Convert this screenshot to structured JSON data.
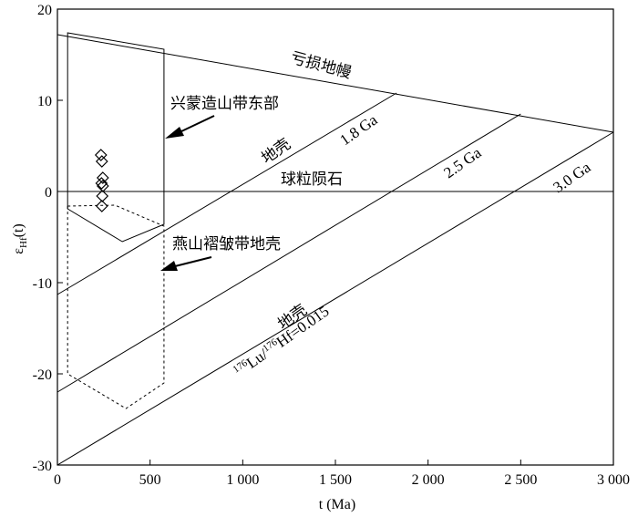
{
  "chart_data": {
    "type": "line",
    "xlabel": "t (Ma)",
    "ylabel_main": "ε",
    "ylabel_sub": "Hf",
    "ylabel_suffix": "(t)",
    "xlim": [
      0,
      3000
    ],
    "ylim": [
      -30,
      20
    ],
    "x_ticks": [
      0,
      500,
      1000,
      1500,
      2000,
      2500,
      3000
    ],
    "x_tick_labels": [
      "0",
      "500",
      "1 000",
      "1 500",
      "2 000",
      "2 500",
      "3 000"
    ],
    "y_ticks": [
      -30,
      -20,
      -10,
      0,
      10,
      20
    ],
    "y_tick_labels": [
      "-30",
      "-20",
      "-10",
      "0",
      "10",
      "20"
    ],
    "lines": [
      {
        "id": "depleted-mantle",
        "label": "亏损地幔",
        "points": [
          [
            0,
            17.2
          ],
          [
            3000,
            6.5
          ]
        ],
        "style": "solid"
      },
      {
        "id": "chur",
        "label": "球粒陨石",
        "points": [
          [
            0,
            0
          ],
          [
            3000,
            0
          ]
        ],
        "style": "solid"
      },
      {
        "id": "crust-1-8",
        "label": "1.8 Ga",
        "points": [
          [
            0,
            -11.3
          ],
          [
            1830,
            10.8
          ]
        ],
        "style": "solid"
      },
      {
        "id": "crust-2-5",
        "label": "2.5 Ga",
        "points": [
          [
            0,
            -22
          ],
          [
            2500,
            8.5
          ]
        ],
        "style": "solid"
      },
      {
        "id": "crust-3-0",
        "label": "3.0 Ga",
        "points": [
          [
            0,
            -30
          ],
          [
            3000,
            6.5
          ]
        ],
        "style": "solid"
      }
    ],
    "regions": [
      {
        "id": "xingmeng-field",
        "label": "兴蒙造山带东部",
        "style": "solid",
        "points": [
          [
            55,
            17.4
          ],
          [
            575,
            15.6
          ],
          [
            575,
            -3.6
          ],
          [
            350,
            -5.5
          ],
          [
            55,
            -1.9
          ]
        ]
      },
      {
        "id": "yanshan-field",
        "label": "燕山褶皱带地壳",
        "style": "dashed",
        "points": [
          [
            55,
            -1.6
          ],
          [
            310,
            -1.5
          ],
          [
            575,
            -3.8
          ],
          [
            575,
            -21
          ],
          [
            370,
            -23.8
          ],
          [
            55,
            -20
          ]
        ]
      }
    ],
    "points": [
      {
        "x": 235,
        "y": 4.0
      },
      {
        "x": 240,
        "y": 3.3
      },
      {
        "x": 245,
        "y": 1.5
      },
      {
        "x": 238,
        "y": 0.9
      },
      {
        "x": 245,
        "y": 0.6
      },
      {
        "x": 242,
        "y": -0.5
      },
      {
        "x": 240,
        "y": -1.6
      }
    ],
    "annotations": {
      "dm": "亏损地幔",
      "xingmeng": "兴蒙造山带东部",
      "crust": "地壳",
      "ga18": "1.8 Ga",
      "chur": "球粒陨石",
      "ga25": "2.5 Ga",
      "ga30": "3.0 Ga",
      "yanshan": "燕山褶皱带地壳",
      "crust2": "地壳",
      "ratio_lu": "Lu/",
      "ratio_hf": "Hf=0.015",
      "ratio_sup1": "176",
      "ratio_sup2": "176"
    }
  }
}
